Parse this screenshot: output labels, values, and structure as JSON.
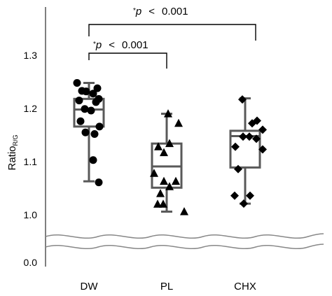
{
  "chart_data": {
    "type": "box",
    "ylabel_main": "Ratio",
    "ylabel_sub": "R/G",
    "yticks_upper": [
      "1.3",
      "1.2",
      "1.1",
      "1.0"
    ],
    "ytick_lower": "0.0",
    "axis_break": true,
    "categories": [
      "DW",
      "PL",
      "CHX"
    ],
    "series": [
      {
        "category": "DW",
        "marker": "circle",
        "box": {
          "whisker_low": 1.063,
          "q1": 1.166,
          "median": 1.198,
          "q3": 1.218,
          "whisker_high": 1.248
        },
        "points": [
          1.248,
          1.238,
          1.233,
          1.232,
          1.228,
          1.218,
          1.215,
          1.212,
          1.199,
          1.196,
          1.176,
          1.166,
          1.155,
          1.152,
          1.103,
          1.061
        ]
      },
      {
        "category": "PL",
        "marker": "triangle",
        "box": {
          "whisker_low": 1.006,
          "q1": 1.051,
          "median": 1.091,
          "q3": 1.134,
          "whisker_high": 1.19
        },
        "points": [
          1.19,
          1.172,
          1.134,
          1.128,
          1.117,
          1.078,
          1.063,
          1.063,
          1.053,
          1.04,
          1.02,
          1.02,
          1.006
        ]
      },
      {
        "category": "CHX",
        "marker": "diamond",
        "box": {
          "whisker_low": 1.021,
          "q1": 1.089,
          "median": 1.148,
          "q3": 1.158,
          "whisker_high": 1.219
        },
        "points": [
          1.217,
          1.177,
          1.172,
          1.16,
          1.147,
          1.147,
          1.143,
          1.128,
          1.123,
          1.086,
          1.036,
          1.036,
          1.021
        ]
      }
    ],
    "annotations": [
      {
        "from": "DW",
        "to": "PL",
        "star": "*",
        "p": "p",
        "op": "<",
        "value": "0.001"
      },
      {
        "from": "DW",
        "to": "CHX",
        "star": "*",
        "p": "p",
        "op": "<",
        "value": "0.001"
      }
    ]
  }
}
